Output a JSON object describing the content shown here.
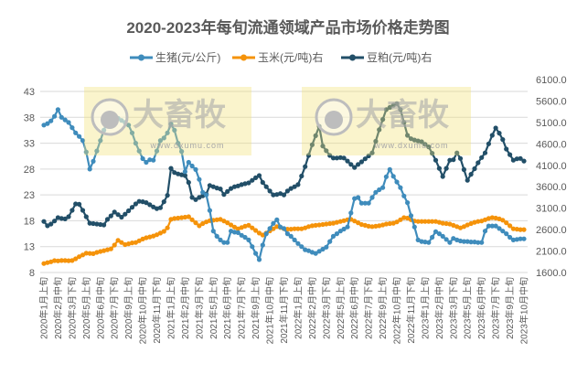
{
  "chart_data": {
    "type": "line",
    "title": "2020-2023年每旬流通领域产品市场价格走势图",
    "x_tick_labels": [
      "2020年1月上旬",
      "2020年2月中旬",
      "2020年3月下旬",
      "2020年5月上旬",
      "2020年6月中旬",
      "2020年7月下旬",
      "2020年9月上旬",
      "2020年10月中旬",
      "2020年11月下旬",
      "2021年1月上旬",
      "2021年2月中旬",
      "2021年3月下旬",
      "2021年5月上旬",
      "2021年6月中旬",
      "2021年7月下旬",
      "2021年9月上旬",
      "2021年10月中旬",
      "2021年11月下旬",
      "2022年1月上旬",
      "2022年2月中旬",
      "2022年3月下旬",
      "2022年5月上旬",
      "2022年6月中旬",
      "2022年7月下旬",
      "2022年9月上旬",
      "2022年10月中旬",
      "2022年11月下旬",
      "2023年1月上旬",
      "2023年2月中旬",
      "2023年3月下旬",
      "2023年5月上旬",
      "2023年6月中旬",
      "2023年7月下旬",
      "2023年9月上旬",
      "2023年10月中旬"
    ],
    "x_tick_every": 4,
    "point_count": 137,
    "left_axis": {
      "min": 8,
      "max": 43,
      "step": 5,
      "ticks": [
        "8",
        "13",
        "18",
        "23",
        "28",
        "33",
        "38",
        "43"
      ]
    },
    "right_axis": {
      "min": 1600,
      "max": 6100,
      "step": 500,
      "ticks": [
        "1600.0",
        "2100.0",
        "2600.0",
        "3100.0",
        "3600.0",
        "4100.0",
        "4600.0",
        "5100.0",
        "5600.0",
        "6100.0"
      ]
    },
    "grid": true,
    "legend_position": "top",
    "series": [
      {
        "name": "生猪(元/公斤)",
        "axis": "left",
        "color": "#3f8cbc",
        "values": [
          36.5,
          36.8,
          37.3,
          38.2,
          39.5,
          38,
          37.5,
          37,
          36,
          35,
          34.3,
          33.5,
          31.3,
          28,
          29.5,
          31.5,
          33.5,
          35.5,
          37.2,
          37.7,
          37.5,
          37.8,
          37.4,
          37,
          36.5,
          35,
          33,
          31.5,
          30,
          29.3,
          29.8,
          29.7,
          31.5,
          33.5,
          34,
          35,
          36.7,
          35.5,
          33,
          31.4,
          27.5,
          29.3,
          28.6,
          27.9,
          26,
          23.5,
          23,
          20,
          16,
          15,
          14.3,
          13.8,
          13.8,
          16,
          15.8,
          15.7,
          15.2,
          14.8,
          14.3,
          13,
          11.7,
          10.5,
          13.3,
          15.5,
          16.5,
          17.5,
          18.2,
          16.8,
          16.5,
          15.5,
          15,
          14.3,
          13.6,
          13,
          12.4,
          12.2,
          11.9,
          11.7,
          12.1,
          12.5,
          12.9,
          14,
          15,
          15.5,
          16,
          16.4,
          16.8,
          19.5,
          22.3,
          22.5,
          21.4,
          21.4,
          21.4,
          22.5,
          23.5,
          24,
          24.4,
          26.5,
          27.9,
          26.6,
          25.5,
          24.4,
          22.8,
          21.5,
          19,
          16.8,
          14.3,
          14,
          13.9,
          13.8,
          14.8,
          15.9,
          15.5,
          15,
          14.4,
          13.8,
          14.6,
          14.3,
          14.1,
          14,
          14,
          13.9,
          13.9,
          13.8,
          13.8,
          16,
          17,
          17,
          17,
          16.5,
          16,
          15.5,
          14.8,
          14.3,
          14.4,
          14.5,
          14.5
        ]
      },
      {
        "name": "玉米(元/吨)右",
        "axis": "right",
        "color": "#f5930a",
        "values": [
          1810,
          1830,
          1850,
          1877,
          1870,
          1880,
          1880,
          1875,
          1880,
          1920,
          1970,
          2010,
          2050,
          2045,
          2040,
          2070,
          2090,
          2110,
          2130,
          2150,
          2240,
          2350,
          2300,
          2250,
          2270,
          2290,
          2300,
          2340,
          2380,
          2410,
          2430,
          2450,
          2480,
          2520,
          2560,
          2640,
          2840,
          2860,
          2870,
          2880,
          2890,
          2900,
          2830,
          2760,
          2690,
          2740,
          2780,
          2810,
          2820,
          2830,
          2840,
          2800,
          2760,
          2710,
          2660,
          2620,
          2650,
          2680,
          2700,
          2640,
          2580,
          2520,
          2475,
          2520,
          2570,
          2620,
          2670,
          2650,
          2620,
          2610,
          2610,
          2620,
          2620,
          2620,
          2640,
          2670,
          2690,
          2700,
          2710,
          2720,
          2730,
          2740,
          2750,
          2770,
          2790,
          2810,
          2830,
          2840,
          2800,
          2760,
          2720,
          2700,
          2680,
          2670,
          2680,
          2690,
          2710,
          2730,
          2740,
          2750,
          2780,
          2830,
          2880,
          2870,
          2830,
          2800,
          2790,
          2790,
          2790,
          2790,
          2790,
          2790,
          2770,
          2750,
          2740,
          2730,
          2700,
          2670,
          2640,
          2670,
          2710,
          2740,
          2770,
          2790,
          2800,
          2830,
          2860,
          2880,
          2870,
          2850,
          2820,
          2760,
          2690,
          2620,
          2610,
          2600,
          2600
        ]
      },
      {
        "name": "豆粕(元/吨)右",
        "axis": "right",
        "color": "#224f68",
        "values": [
          2790,
          2690,
          2730,
          2800,
          2880,
          2860,
          2850,
          2900,
          3050,
          3200,
          3190,
          3050,
          2900,
          2750,
          2740,
          2730,
          2720,
          2710,
          2840,
          2920,
          3010,
          2950,
          2890,
          2960,
          3040,
          3120,
          3200,
          3260,
          3250,
          3230,
          3180,
          3130,
          3090,
          3110,
          3250,
          3400,
          4030,
          3930,
          3900,
          3880,
          3860,
          3700,
          3350,
          3300,
          3350,
          3390,
          3430,
          3630,
          3600,
          3570,
          3550,
          3420,
          3490,
          3560,
          3600,
          3620,
          3650,
          3670,
          3690,
          3750,
          3810,
          3860,
          3700,
          3600,
          3500,
          3410,
          3420,
          3440,
          3410,
          3500,
          3560,
          3600,
          3650,
          3850,
          4070,
          4330,
          4580,
          4790,
          5010,
          4550,
          4440,
          4330,
          4270,
          4270,
          4280,
          4270,
          4200,
          4120,
          4050,
          4120,
          4180,
          4250,
          4320,
          4390,
          4660,
          4930,
          5170,
          5400,
          5450,
          5500,
          5540,
          5400,
          5100,
          4800,
          4720,
          4690,
          4670,
          4650,
          4590,
          4530,
          4380,
          4220,
          4030,
          3840,
          4030,
          4220,
          4230,
          4390,
          4260,
          4000,
          3750,
          3890,
          4020,
          4160,
          4280,
          4390,
          4600,
          4800,
          4970,
          4850,
          4700,
          4480,
          4350,
          4220,
          4250,
          4260,
          4200
        ]
      }
    ],
    "watermark": {
      "brand": "大畜牧",
      "url": "www.dxumu.com"
    }
  }
}
